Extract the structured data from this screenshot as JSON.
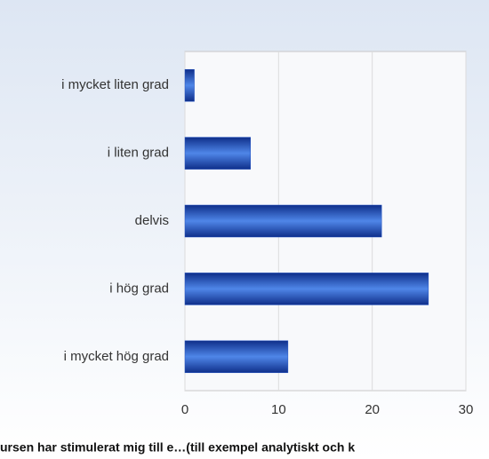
{
  "chart_data": {
    "type": "bar",
    "orientation": "horizontal",
    "title": "ursen har stimulerat mig till e…(till exempel analytiskt och k",
    "categories": [
      "i mycket liten grad",
      "i liten grad",
      "delvis",
      "i hög grad",
      "i mycket hög grad"
    ],
    "values": [
      1,
      7,
      21,
      26,
      11
    ],
    "color": "#1f4fc0",
    "xlim": [
      0,
      30
    ],
    "xticks": [
      0,
      10,
      20,
      30
    ],
    "grid": true
  }
}
